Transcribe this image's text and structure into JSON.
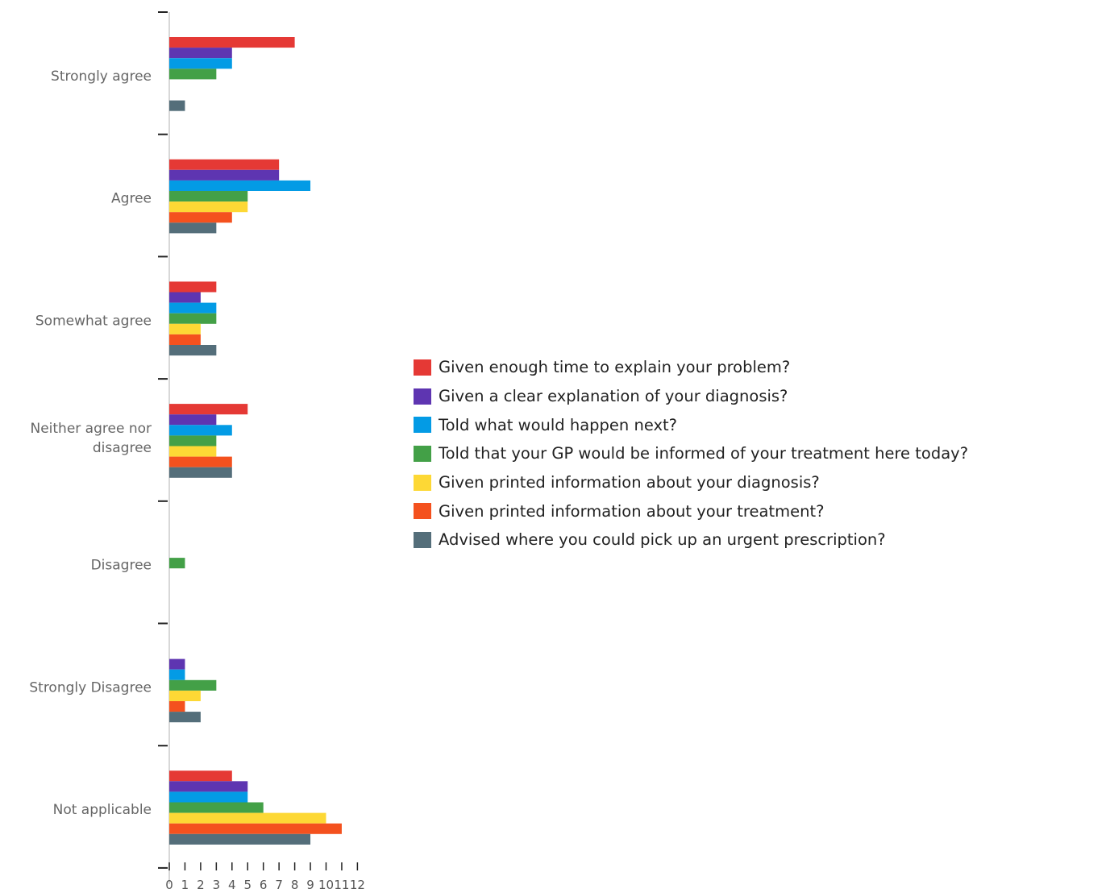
{
  "chart_data": {
    "type": "bar",
    "orientation": "horizontal",
    "categories": [
      "Strongly agree",
      "Agree",
      "Somewhat agree",
      "Neither agree nor disagree",
      "Disagree",
      "Strongly Disagree",
      "Not applicable"
    ],
    "x_ticks": [
      "0",
      "1",
      "2",
      "3",
      "4",
      "5",
      "6",
      "7",
      "8",
      "9",
      "10",
      "11",
      "12"
    ],
    "xlim": [
      0,
      12
    ],
    "legend_position": "right",
    "grid": false,
    "series": [
      {
        "name": "Given enough time to explain your problem?",
        "color": "#e53935",
        "values": [
          8,
          7,
          3,
          5,
          0,
          0,
          4
        ]
      },
      {
        "name": "Given a clear explanation of your diagnosis?",
        "color": "#5e35b1",
        "values": [
          4,
          7,
          2,
          3,
          0,
          1,
          5
        ]
      },
      {
        "name": "Told what would happen next?",
        "color": "#039be5",
        "values": [
          4,
          9,
          3,
          4,
          0,
          1,
          5
        ]
      },
      {
        "name": "Told that your GP would be informed of your treatment here today?",
        "color": "#43a047",
        "values": [
          3,
          5,
          3,
          3,
          1,
          3,
          6
        ]
      },
      {
        "name": "Given printed information about your diagnosis?",
        "color": "#fdd835",
        "values": [
          0,
          5,
          2,
          3,
          0,
          2,
          10
        ]
      },
      {
        "name": "Given printed information about your treatment?",
        "color": "#f4511e",
        "values": [
          0,
          4,
          2,
          4,
          0,
          1,
          11
        ]
      },
      {
        "name": "Advised where you could pick up an urgent prescription?",
        "color": "#546e7a",
        "values": [
          1,
          3,
          3,
          4,
          0,
          2,
          9
        ]
      }
    ]
  }
}
